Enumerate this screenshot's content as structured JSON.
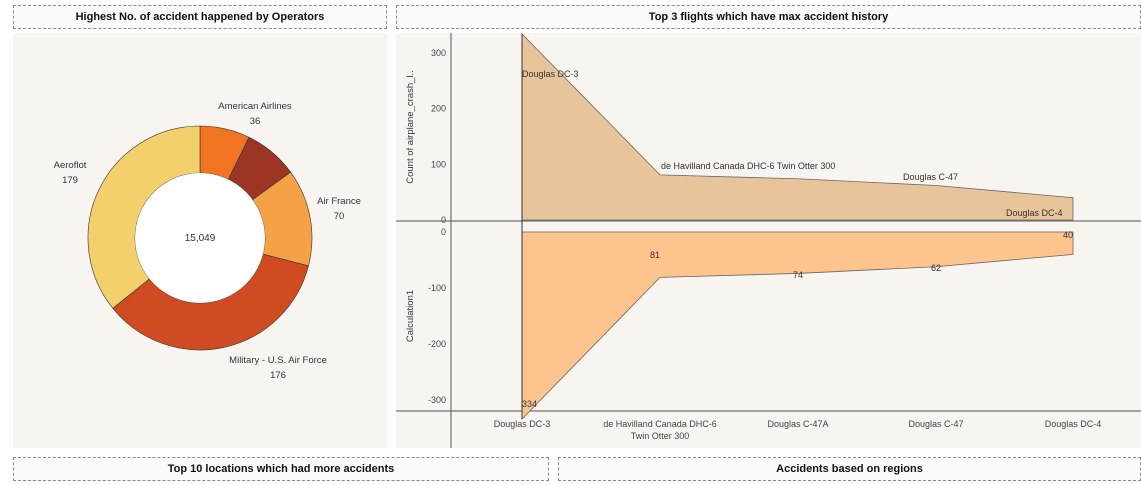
{
  "titles": {
    "operators": "Highest No. of accident happened by Operators",
    "flights": "Top 3 flights which have max accident history",
    "locations": "Top 10 locations which had more accidents",
    "regions": "Accidents based on regions"
  },
  "chart_data": [
    {
      "type": "pie",
      "title": "Highest No. of accident happened by Operators",
      "center_label": "15,049",
      "slices": [
        {
          "label": "American Airlines",
          "value": 36,
          "display": "36",
          "color": "#f07421"
        },
        {
          "label": "",
          "value": 39,
          "display": "",
          "color": "#9c3523"
        },
        {
          "label": "Air France",
          "value": 70,
          "display": "70",
          "color": "#f5a246"
        },
        {
          "label": "Military - U.S. Air Force",
          "value": 176,
          "display": "176",
          "color": "#cf4c22"
        },
        {
          "label": "Aeroflot",
          "value": 179,
          "display": "179",
          "color": "#f3d06c"
        }
      ]
    },
    {
      "type": "area",
      "title": "Top 3 flights which have max accident history",
      "categories": [
        "Douglas DC-3",
        "de Havilland Canada DHC-6 Twin Otter 300",
        "Douglas C-47A",
        "Douglas C-47",
        "Douglas DC-4"
      ],
      "category_lines": [
        [
          "Douglas DC-3"
        ],
        [
          "de Havilland Canada DHC-6",
          "Twin Otter 300"
        ],
        [
          "Douglas C-47A"
        ],
        [
          "Douglas C-47"
        ],
        [
          "Douglas DC-4"
        ]
      ],
      "panes": [
        {
          "ylabel": "Count of airplane_crash_l..",
          "ylim": [
            0,
            334
          ],
          "ticks": [
            0,
            100,
            200,
            300
          ],
          "tick_labels": [
            "0",
            "100",
            "200",
            "300"
          ],
          "values": [
            334,
            81,
            74,
            62,
            40
          ],
          "labels": [
            "Douglas DC-3",
            "de Havilland Canada DHC-6 Twin Otter 300",
            "",
            "Douglas C-47",
            "Douglas DC-4"
          ],
          "color": "#e8c49a"
        },
        {
          "ylabel": "Calculation1",
          "ylim": [
            -334,
            0
          ],
          "ticks": [
            0,
            -100,
            -200,
            -300
          ],
          "tick_labels": [
            "0",
            "-100",
            "-200",
            "-300"
          ],
          "values": [
            -334,
            -81,
            -74,
            -62,
            -40
          ],
          "labels": [
            "334",
            "81",
            "74",
            "62",
            "40"
          ],
          "color": "#fdc48e"
        }
      ]
    }
  ]
}
